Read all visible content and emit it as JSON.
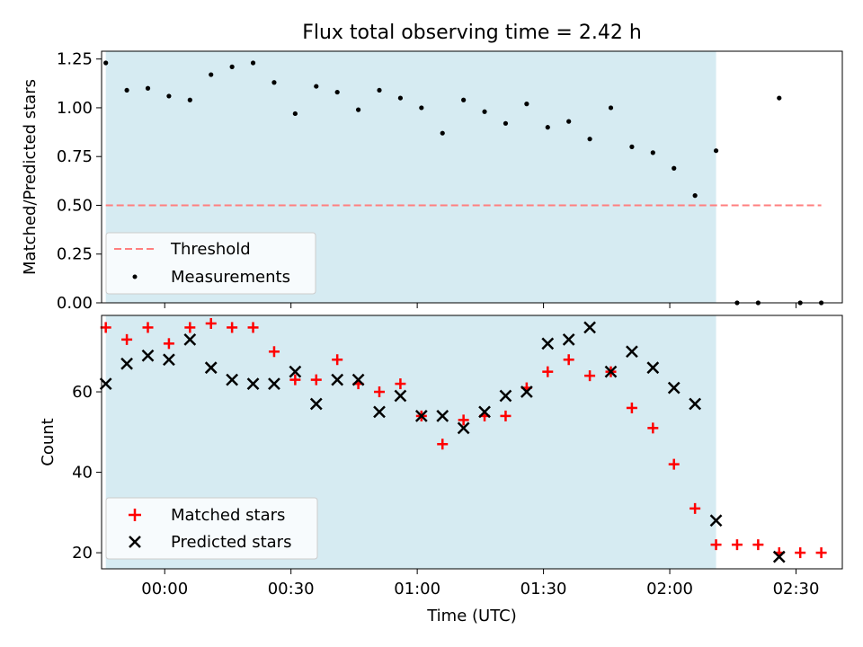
{
  "chart_data": [
    {
      "type": "scatter",
      "title": "Flux total observing time = 2.42 h",
      "ylabel": "Matched/Predicted stars",
      "xlim": [
        "23:45",
        "02:41"
      ],
      "ylim": [
        0,
        1.29
      ],
      "yticks": [
        "0.00",
        "0.25",
        "0.50",
        "0.75",
        "1.00",
        "1.25"
      ],
      "shaded_span": [
        "23:46",
        "02:11"
      ],
      "shade_color": "#add8e6",
      "threshold": {
        "label": "Threshold",
        "y": 0.5,
        "x": [
          "23:46",
          "02:36"
        ],
        "color": "#ff7f7f",
        "style": "dashed"
      },
      "series": [
        {
          "name": "Measurements",
          "marker": "dot",
          "color": "#000000",
          "points": [
            [
              "23:46",
              1.23
            ],
            [
              "23:51",
              1.09
            ],
            [
              "23:56",
              1.1
            ],
            [
              "00:01",
              1.06
            ],
            [
              "00:06",
              1.04
            ],
            [
              "00:11",
              1.17
            ],
            [
              "00:16",
              1.21
            ],
            [
              "00:21",
              1.23
            ],
            [
              "00:26",
              1.13
            ],
            [
              "00:31",
              0.97
            ],
            [
              "00:36",
              1.11
            ],
            [
              "00:41",
              1.08
            ],
            [
              "00:46",
              0.99
            ],
            [
              "00:51",
              1.09
            ],
            [
              "00:56",
              1.05
            ],
            [
              "01:01",
              1.0
            ],
            [
              "01:06",
              0.87
            ],
            [
              "01:11",
              1.04
            ],
            [
              "01:16",
              0.98
            ],
            [
              "01:21",
              0.92
            ],
            [
              "01:26",
              1.02
            ],
            [
              "01:31",
              0.9
            ],
            [
              "01:36",
              0.93
            ],
            [
              "01:41",
              0.84
            ],
            [
              "01:46",
              1.0
            ],
            [
              "01:51",
              0.8
            ],
            [
              "01:56",
              0.77
            ],
            [
              "02:01",
              0.69
            ],
            [
              "02:06",
              0.55
            ],
            [
              "02:11",
              0.78
            ],
            [
              "02:16",
              0.0
            ],
            [
              "02:21",
              0.0
            ],
            [
              "02:26",
              1.05
            ],
            [
              "02:31",
              0.0
            ],
            [
              "02:36",
              0.0
            ]
          ]
        }
      ],
      "legend": {
        "position": "lower-left",
        "entries": [
          "Threshold",
          "Measurements"
        ]
      }
    },
    {
      "type": "scatter",
      "xlabel": "Time (UTC)",
      "ylabel": "Count",
      "xlim": [
        "23:45",
        "02:41"
      ],
      "ylim": [
        16,
        79
      ],
      "yticks": [
        "20",
        "40",
        "60"
      ],
      "xticks": [
        "00:00",
        "00:30",
        "01:00",
        "01:30",
        "02:00",
        "02:30"
      ],
      "shaded_span": [
        "23:46",
        "02:11"
      ],
      "shade_color": "#add8e6",
      "series": [
        {
          "name": "Matched stars",
          "marker": "plus",
          "color": "#ff0000",
          "points": [
            [
              "23:46",
              76
            ],
            [
              "23:51",
              73
            ],
            [
              "23:56",
              76
            ],
            [
              "00:01",
              72
            ],
            [
              "00:06",
              76
            ],
            [
              "00:11",
              77
            ],
            [
              "00:16",
              76
            ],
            [
              "00:21",
              76
            ],
            [
              "00:26",
              70
            ],
            [
              "00:31",
              63
            ],
            [
              "00:36",
              63
            ],
            [
              "00:41",
              68
            ],
            [
              "00:46",
              62
            ],
            [
              "00:51",
              60
            ],
            [
              "00:56",
              62
            ],
            [
              "01:01",
              54
            ],
            [
              "01:06",
              47
            ],
            [
              "01:11",
              53
            ],
            [
              "01:16",
              54
            ],
            [
              "01:21",
              54
            ],
            [
              "01:26",
              61
            ],
            [
              "01:31",
              65
            ],
            [
              "01:36",
              68
            ],
            [
              "01:41",
              64
            ],
            [
              "01:46",
              65
            ],
            [
              "01:51",
              56
            ],
            [
              "01:56",
              51
            ],
            [
              "02:01",
              42
            ],
            [
              "02:06",
              31
            ],
            [
              "02:11",
              22
            ],
            [
              "02:16",
              22
            ],
            [
              "02:21",
              22
            ],
            [
              "02:26",
              20
            ],
            [
              "02:31",
              20
            ],
            [
              "02:36",
              20
            ]
          ]
        },
        {
          "name": "Predicted stars",
          "marker": "x",
          "color": "#000000",
          "points": [
            [
              "23:46",
              62
            ],
            [
              "23:51",
              67
            ],
            [
              "23:56",
              69
            ],
            [
              "00:01",
              68
            ],
            [
              "00:06",
              73
            ],
            [
              "00:11",
              66
            ],
            [
              "00:16",
              63
            ],
            [
              "00:21",
              62
            ],
            [
              "00:26",
              62
            ],
            [
              "00:31",
              65
            ],
            [
              "00:36",
              57
            ],
            [
              "00:41",
              63
            ],
            [
              "00:46",
              63
            ],
            [
              "00:51",
              55
            ],
            [
              "00:56",
              59
            ],
            [
              "01:01",
              54
            ],
            [
              "01:06",
              54
            ],
            [
              "01:11",
              51
            ],
            [
              "01:16",
              55
            ],
            [
              "01:21",
              59
            ],
            [
              "01:26",
              60
            ],
            [
              "01:31",
              72
            ],
            [
              "01:36",
              73
            ],
            [
              "01:41",
              76
            ],
            [
              "01:46",
              65
            ],
            [
              "01:51",
              70
            ],
            [
              "01:56",
              66
            ],
            [
              "02:01",
              61
            ],
            [
              "02:06",
              57
            ],
            [
              "02:11",
              28
            ],
            [
              "02:26",
              19
            ]
          ]
        }
      ],
      "legend": {
        "position": "lower-left",
        "entries": [
          "Matched stars",
          "Predicted stars"
        ]
      }
    }
  ]
}
